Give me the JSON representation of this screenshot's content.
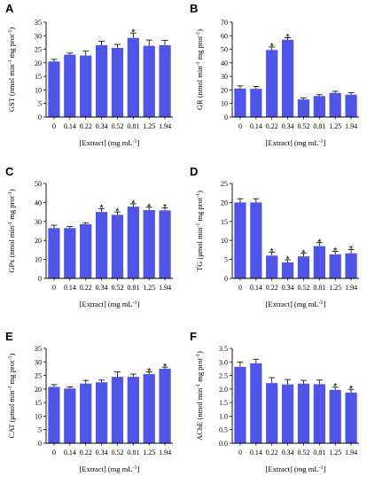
{
  "chart_data": [
    {
      "type": "bar",
      "letter": "A",
      "categories": [
        "0",
        "0.14",
        "0.22",
        "0.34",
        "0.52",
        "0.81",
        "1.25",
        "1.94"
      ],
      "values": [
        20.5,
        23,
        22.7,
        26.5,
        25.5,
        29.2,
        26.3,
        26.5
      ],
      "errors": [
        0.8,
        0.6,
        1.6,
        1.5,
        1.3,
        1.8,
        2.1,
        1.8
      ],
      "significant": [
        false,
        false,
        false,
        false,
        false,
        true,
        false,
        false
      ],
      "ylim": [
        0,
        35
      ],
      "yticks": [
        0,
        5,
        10,
        15,
        20,
        25,
        30,
        35
      ],
      "ylabel_main": "GST (nmol min",
      "ylabel_sup1": "-1",
      "ylabel_mid": " mg prot",
      "ylabel_sup2": "-1",
      "ylabel_end": ")",
      "xlabel_main": "[Extract] (mg mL",
      "xlabel_sup": "-1",
      "xlabel_end": "]",
      "significance_mark": "*",
      "color": "#4f55e8"
    },
    {
      "type": "bar",
      "letter": "B",
      "categories": [
        "0",
        "0.14",
        "0.22",
        "0.34",
        "0.52",
        "0.81",
        "1.25",
        "1.94"
      ],
      "values": [
        21,
        20.8,
        49.5,
        57,
        13,
        15.5,
        17.8,
        16.5
      ],
      "errors": [
        2,
        1.8,
        2.2,
        1.6,
        1,
        1,
        1.2,
        1.4
      ],
      "significant": [
        false,
        false,
        true,
        true,
        false,
        false,
        false,
        false
      ],
      "ylim": [
        0,
        70
      ],
      "yticks": [
        0,
        10,
        20,
        30,
        40,
        50,
        60,
        70
      ],
      "ylabel_main": "GR (nmol min",
      "ylabel_sup1": "-1",
      "ylabel_mid": " mg prot",
      "ylabel_sup2": "-1",
      "ylabel_end": ")",
      "xlabel_main": "[Extract] (mg mL",
      "xlabel_sup": "-1",
      "xlabel_end": "]",
      "significance_mark": "*",
      "color": "#4f55e8"
    },
    {
      "type": "bar",
      "letter": "C",
      "categories": [
        "0",
        "0.14",
        "0.22",
        "0.34",
        "0.52",
        "0.81",
        "1.25",
        "1.94"
      ],
      "values": [
        26.5,
        26.5,
        28.5,
        35,
        33.5,
        37.8,
        36,
        35.8
      ],
      "errors": [
        1.5,
        0.8,
        0.8,
        1.8,
        1.5,
        1.5,
        1.5,
        1.3
      ],
      "significant": [
        false,
        false,
        false,
        true,
        true,
        true,
        true,
        true
      ],
      "ylim": [
        0,
        50
      ],
      "yticks": [
        0,
        10,
        20,
        30,
        40,
        50
      ],
      "ylabel_main": "GPx (nmol min",
      "ylabel_sup1": "-1",
      "ylabel_mid": " mg prot",
      "ylabel_sup2": "-1",
      "ylabel_end": ")",
      "xlabel_main": "[Extract] (mg mL",
      "xlabel_sup": "-1",
      "xlabel_end": "]",
      "significance_mark": "*",
      "color": "#4f55e8"
    },
    {
      "type": "bar",
      "letter": "D",
      "categories": [
        "0",
        "0.14",
        "0.22",
        "0.34",
        "0.52",
        "0.81",
        "1.25",
        "1.94"
      ],
      "values": [
        20,
        20,
        6,
        4.2,
        5.8,
        8.5,
        6.3,
        6.6
      ],
      "errors": [
        1,
        1,
        0.9,
        0.7,
        0.8,
        0.9,
        0.8,
        1
      ],
      "significant": [
        false,
        false,
        true,
        true,
        true,
        true,
        true,
        true
      ],
      "ylim": [
        0,
        25
      ],
      "yticks": [
        0,
        5,
        10,
        15,
        20,
        25
      ],
      "ylabel_main": "TG (μmol min",
      "ylabel_sup1": "-1",
      "ylabel_mid": " mg prot",
      "ylabel_sup2": "-1",
      "ylabel_end": ")",
      "xlabel_main": "[Extract] (mg mL",
      "xlabel_sup": "-1",
      "xlabel_end": "]",
      "significance_mark": "*",
      "color": "#4f55e8"
    },
    {
      "type": "bar",
      "letter": "E",
      "categories": [
        "0",
        "0.14",
        "0.22",
        "0.34",
        "0.52",
        "0.81",
        "1.25",
        "1.94"
      ],
      "values": [
        20.8,
        20.2,
        22,
        22.5,
        24.5,
        24.5,
        25.5,
        27.5
      ],
      "errors": [
        0.8,
        0.6,
        1.2,
        0.8,
        1.8,
        1,
        0.8,
        0.6
      ],
      "significant": [
        false,
        false,
        false,
        false,
        false,
        false,
        true,
        true
      ],
      "ylim": [
        0,
        35
      ],
      "yticks": [
        0,
        5,
        10,
        15,
        20,
        25,
        30,
        35
      ],
      "ylabel_main": "CAT (μmol min",
      "ylabel_sup1": "-1",
      "ylabel_mid": " mg prot",
      "ylabel_sup2": "-1",
      "ylabel_end": ")",
      "xlabel_main": "[Extract] (mg mL",
      "xlabel_sup": "-1",
      "xlabel_end": "]",
      "significance_mark": "*",
      "color": "#4f55e8"
    },
    {
      "type": "bar",
      "letter": "F",
      "categories": [
        "0",
        "0.14",
        "0.22",
        "0.34",
        "0.52",
        "0.81",
        "1.25",
        "1.94"
      ],
      "values": [
        2.82,
        2.95,
        2.22,
        2.17,
        2.2,
        2.18,
        1.97,
        1.87
      ],
      "errors": [
        0.18,
        0.15,
        0.2,
        0.18,
        0.12,
        0.15,
        0.1,
        0.12
      ],
      "significant": [
        false,
        false,
        false,
        false,
        false,
        false,
        true,
        true
      ],
      "ylim": [
        0,
        3.5
      ],
      "yticks": [
        0.0,
        0.5,
        1.0,
        1.5,
        2.0,
        2.5,
        3.0,
        3.5
      ],
      "ytick_labels": [
        "0.0",
        "0.5",
        "1.0",
        "1.5",
        "2.0",
        "2.5",
        "3.0",
        "3.5"
      ],
      "ylabel_main": "AChE (nmol min",
      "ylabel_sup1": "-1",
      "ylabel_mid": " mg prot",
      "ylabel_sup2": "-1",
      "ylabel_end": ")",
      "xlabel_main": "[Extract] (mg mL",
      "xlabel_sup": "-1",
      "xlabel_end": "]",
      "significance_mark": "*",
      "color": "#4f55e8"
    }
  ]
}
